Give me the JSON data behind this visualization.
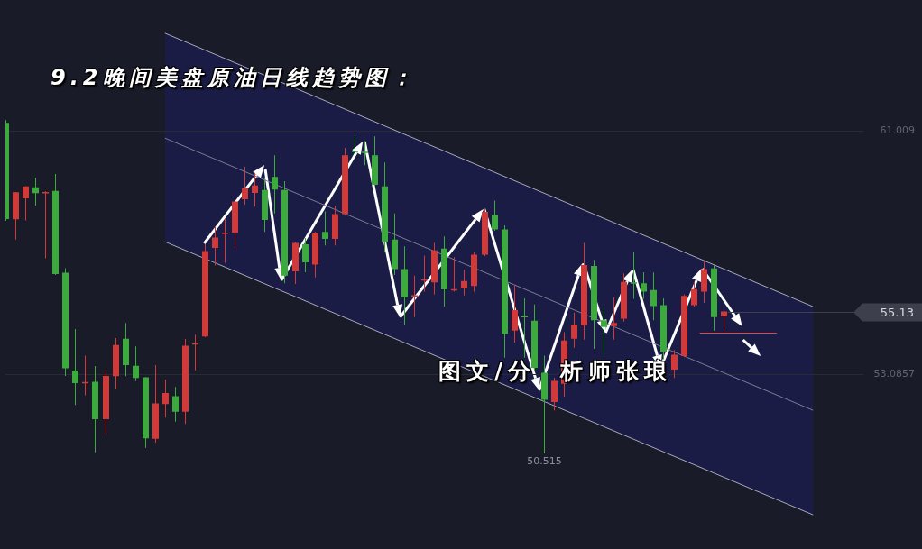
{
  "chart_data": {
    "type": "candlestick",
    "title": "9.2晚间美盘原油日线趋势图：",
    "categories": [
      null,
      null,
      null,
      null,
      null,
      null,
      null,
      null,
      null,
      null,
      null,
      null,
      null,
      null,
      null,
      null,
      null,
      null,
      null,
      null,
      null,
      null,
      null,
      null,
      null,
      null,
      null,
      null,
      null,
      null,
      null,
      null,
      null,
      null,
      null,
      null,
      null,
      null,
      null,
      null,
      null,
      null,
      null,
      null,
      null,
      null,
      null,
      null,
      null,
      null,
      null,
      null,
      null,
      null,
      null,
      null,
      null,
      null,
      null,
      null,
      null,
      null,
      null,
      null,
      null,
      null,
      null,
      null,
      null,
      null,
      null,
      null,
      null,
      null,
      null,
      null,
      null,
      null,
      null,
      null,
      null,
      null,
      null,
      null,
      null,
      null,
      null
    ],
    "ohlc": [
      [
        61.27,
        61.36,
        58.08,
        58.14
      ],
      [
        58.13,
        59.02,
        57.47,
        59.01
      ],
      [
        58.81,
        59.21,
        58.09,
        59.2
      ],
      [
        59.17,
        59.48,
        58.58,
        58.98
      ],
      [
        59.0,
        59.04,
        56.86,
        59.02
      ],
      [
        59.05,
        59.6,
        56.32,
        56.35
      ],
      [
        56.39,
        56.54,
        53.04,
        53.29
      ],
      [
        53.21,
        54.56,
        52.09,
        52.8
      ],
      [
        52.81,
        53.7,
        52.41,
        52.84
      ],
      [
        52.85,
        53.36,
        50.55,
        51.63
      ],
      [
        51.63,
        53.24,
        51.14,
        53.04
      ],
      [
        53.03,
        54.27,
        52.6,
        54.04
      ],
      [
        54.25,
        54.76,
        53.03,
        53.39
      ],
      [
        53.37,
        54.0,
        52.87,
        52.97
      ],
      [
        52.99,
        53.0,
        50.7,
        51.01
      ],
      [
        50.99,
        53.39,
        50.87,
        52.14
      ],
      [
        52.12,
        52.92,
        51.68,
        52.48
      ],
      [
        52.38,
        52.68,
        51.55,
        51.87
      ],
      [
        51.87,
        54.24,
        51.48,
        54.02
      ],
      [
        54.08,
        54.38,
        53.22,
        54.1
      ],
      [
        54.32,
        57.32,
        54.3,
        57.1
      ],
      [
        57.2,
        57.88,
        56.63,
        57.54
      ],
      [
        57.68,
        58.17,
        56.71,
        57.7
      ],
      [
        57.69,
        58.76,
        57.2,
        58.71
      ],
      [
        58.78,
        59.84,
        58.61,
        59.15
      ],
      [
        58.99,
        59.64,
        58.55,
        59.23
      ],
      [
        59.08,
        59.46,
        57.72,
        58.11
      ],
      [
        59.51,
        60.21,
        58.32,
        59.1
      ],
      [
        59.08,
        59.37,
        56.05,
        56.3
      ],
      [
        56.44,
        57.39,
        56.03,
        57.36
      ],
      [
        57.32,
        57.52,
        56.41,
        56.73
      ],
      [
        56.66,
        57.72,
        56.24,
        57.69
      ],
      [
        57.72,
        58.39,
        57.28,
        57.49
      ],
      [
        57.49,
        58.57,
        57.28,
        58.3
      ],
      [
        58.3,
        60.45,
        58.28,
        60.21
      ],
      [
        60.36,
        60.86,
        60.3,
        60.34
      ],
      [
        60.33,
        60.67,
        59.89,
        60.31
      ],
      [
        60.21,
        60.83,
        59.23,
        59.25
      ],
      [
        59.2,
        59.98,
        57.05,
        57.39
      ],
      [
        57.47,
        58.32,
        56.32,
        56.51
      ],
      [
        56.51,
        57.25,
        54.71,
        55.59
      ],
      [
        55.64,
        56.3,
        54.95,
        55.66
      ],
      [
        56.16,
        56.95,
        55.78,
        56.18
      ],
      [
        56.08,
        57.37,
        55.68,
        57.12
      ],
      [
        57.18,
        57.57,
        55.29,
        55.85
      ],
      [
        55.84,
        56.9,
        55.78,
        55.86
      ],
      [
        55.88,
        56.49,
        55.65,
        56.12
      ],
      [
        55.96,
        57.05,
        55.78,
        56.98
      ],
      [
        56.98,
        58.47,
        56.93,
        58.37
      ],
      [
        58.27,
        58.74,
        57.76,
        57.8
      ],
      [
        57.8,
        57.93,
        53.63,
        54.41
      ],
      [
        54.51,
        55.98,
        54.12,
        55.18
      ],
      [
        54.99,
        55.56,
        53.63,
        54.97
      ],
      [
        54.83,
        55.36,
        53.18,
        53.3
      ],
      [
        53.14,
        53.7,
        50.515,
        52.26
      ],
      [
        52.19,
        52.98,
        51.92,
        52.88
      ],
      [
        52.78,
        54.46,
        52.36,
        54.19
      ],
      [
        54.25,
        55.1,
        53.95,
        54.71
      ],
      [
        54.68,
        57.36,
        54.22,
        56.64
      ],
      [
        56.61,
        56.81,
        53.92,
        54.85
      ],
      [
        54.85,
        55.27,
        53.73,
        54.63
      ],
      [
        54.66,
        55.59,
        54.22,
        54.76
      ],
      [
        54.9,
        56.37,
        54.8,
        56.09
      ],
      [
        56.08,
        57.05,
        55.54,
        56.06
      ],
      [
        56.05,
        56.41,
        55.54,
        55.78
      ],
      [
        55.83,
        56.4,
        54.85,
        55.31
      ],
      [
        55.34,
        55.56,
        53.58,
        53.83
      ],
      [
        53.24,
        53.88,
        52.97,
        53.73
      ],
      [
        53.68,
        55.68,
        53.66,
        55.64
      ],
      [
        55.34,
        56.08,
        55.29,
        55.86
      ],
      [
        55.78,
        56.79,
        55.41,
        56.51
      ],
      [
        56.53,
        56.66,
        54.51,
        54.95
      ],
      [
        54.97,
        55.13,
        54.51,
        55.13
      ],
      null,
      null,
      null,
      null,
      null,
      null,
      null,
      null,
      null,
      null,
      null,
      null,
      null,
      null
    ],
    "colors": [
      "#3caa3c",
      "#d23a3a",
      "#d23a3a",
      "#3caa3c",
      "#d23a3a",
      "#3caa3c",
      "#3caa3c",
      "#3caa3c",
      "#d23a3a",
      "#3caa3c",
      "#d23a3a",
      "#d23a3a",
      "#3caa3c",
      "#3caa3c",
      "#3caa3c",
      "#d23a3a",
      "#d23a3a",
      "#3caa3c",
      "#d23a3a",
      "#d23a3a",
      "#d23a3a",
      "#d23a3a",
      "#d23a3a",
      "#d23a3a",
      "#d23a3a",
      "#d23a3a",
      "#3caa3c",
      "#3caa3c",
      "#3caa3c",
      "#d23a3a",
      "#3caa3c",
      "#d23a3a",
      "#3caa3c",
      "#d23a3a",
      "#d23a3a",
      "#3caa3c",
      "#3caa3c",
      "#3caa3c",
      "#3caa3c",
      "#3caa3c",
      "#3caa3c",
      "#d23a3a",
      "#d23a3a",
      "#d23a3a",
      "#3caa3c",
      "#d23a3a",
      "#d23a3a",
      "#d23a3a",
      "#d23a3a",
      "#3caa3c",
      "#3caa3c",
      "#d23a3a",
      "#3caa3c",
      "#3caa3c",
      "#3caa3c",
      "#d23a3a",
      "#d23a3a",
      "#d23a3a",
      "#d23a3a",
      "#3caa3c",
      "#3caa3c",
      "#d23a3a",
      "#d23a3a",
      "#3caa3c",
      "#3caa3c",
      "#3caa3c",
      "#3caa3c",
      "#d23a3a",
      "#d23a3a",
      "#d23a3a",
      "#d23a3a",
      "#3caa3c",
      "#d23a3a",
      null,
      null,
      null,
      null,
      null,
      null,
      null,
      null,
      null,
      null,
      null,
      null,
      null,
      null
    ],
    "series": [
      {
        "type": "line",
        "color": "#a9a9bb",
        "values": [
          null,
          null,
          null,
          null,
          null,
          null,
          null,
          null,
          null,
          null,
          null,
          null,
          null,
          null,
          null,
          null,
          64.18,
          null,
          null,
          null,
          null,
          null,
          null,
          null,
          null,
          null,
          null,
          null,
          null,
          null,
          null,
          null,
          null,
          null,
          null,
          null,
          null,
          null,
          null,
          null,
          null,
          null,
          null,
          null,
          null,
          null,
          null,
          null,
          null,
          null,
          null,
          null,
          null,
          null,
          null,
          null,
          null,
          null,
          null,
          null,
          null,
          null,
          null,
          null,
          null,
          null,
          null,
          null,
          null,
          null,
          null,
          null,
          null,
          null,
          null,
          null,
          null,
          null,
          null,
          null,
          null,
          55.29,
          null,
          null,
          null,
          null,
          null
        ]
      },
      {
        "type": "line",
        "color": "#7c7c94",
        "values": [
          null,
          null,
          null,
          null,
          null,
          null,
          null,
          null,
          null,
          null,
          null,
          null,
          null,
          null,
          null,
          null,
          60.77,
          null,
          null,
          null,
          null,
          null,
          null,
          null,
          null,
          null,
          null,
          null,
          null,
          null,
          null,
          null,
          null,
          null,
          null,
          null,
          null,
          null,
          null,
          null,
          null,
          null,
          null,
          null,
          null,
          null,
          null,
          null,
          null,
          null,
          null,
          null,
          null,
          null,
          null,
          null,
          null,
          null,
          null,
          null,
          null,
          null,
          null,
          null,
          null,
          null,
          null,
          null,
          null,
          null,
          null,
          null,
          null,
          null,
          null,
          null,
          null,
          null,
          null,
          null,
          null,
          51.92,
          null,
          null,
          null,
          null,
          null
        ],
        "upper": [
          null,
          null,
          null,
          null,
          null,
          null,
          null,
          null,
          null,
          null,
          null,
          null,
          null,
          null,
          null,
          null,
          64.18,
          null,
          null,
          null,
          null,
          null,
          null,
          null,
          null,
          null,
          null,
          null,
          null,
          null,
          null,
          null,
          null,
          null,
          null,
          null,
          null,
          null,
          null,
          null,
          null,
          null,
          null,
          null,
          null,
          null,
          null,
          null,
          null,
          null,
          null,
          null,
          null,
          null,
          null,
          null,
          null,
          null,
          null,
          null,
          null,
          null,
          null,
          null,
          null,
          null,
          null,
          null,
          null,
          null,
          null,
          null,
          null,
          null,
          null,
          null,
          null,
          null,
          null,
          null,
          null,
          55.29,
          null,
          null,
          null,
          null,
          null
        ],
        "lower": [
          null,
          null,
          null,
          null,
          null,
          null,
          null,
          null,
          null,
          null,
          null,
          null,
          null,
          null,
          null,
          null,
          57.4,
          null,
          null,
          null,
          null,
          null,
          null,
          null,
          null,
          null,
          null,
          null,
          null,
          null,
          null,
          null,
          null,
          null,
          null,
          null,
          null,
          null,
          null,
          null,
          null,
          null,
          null,
          null,
          null,
          null,
          null,
          null,
          null,
          null,
          null,
          null,
          null,
          null,
          null,
          null,
          null,
          null,
          null,
          null,
          null,
          null,
          null,
          null,
          null,
          null,
          null,
          null,
          null,
          null,
          null,
          null,
          null,
          null,
          null,
          null,
          null,
          null,
          null,
          null,
          null,
          48.52,
          null,
          null,
          null,
          null,
          null
        ]
      },
      {
        "type": "line",
        "color": "#a9a9bb",
        "values": [
          null,
          null,
          null,
          null,
          null,
          null,
          null,
          null,
          null,
          null,
          null,
          null,
          null,
          null,
          null,
          null,
          57.4,
          null,
          null,
          null,
          null,
          null,
          null,
          null,
          null,
          null,
          null,
          null,
          null,
          null,
          null,
          null,
          null,
          null,
          null,
          null,
          null,
          null,
          null,
          null,
          null,
          null,
          null,
          null,
          null,
          null,
          null,
          null,
          null,
          null,
          null,
          null,
          null,
          null,
          null,
          null,
          null,
          null,
          null,
          null,
          null,
          null,
          null,
          null,
          null,
          null,
          null,
          null,
          null,
          null,
          null,
          null,
          null,
          null,
          null,
          null,
          null,
          null,
          null,
          null,
          null,
          48.52,
          null,
          null,
          null,
          null,
          null
        ]
      }
    ],
    "ylim": [
      47.41,
      65.26
    ],
    "yticks": [
      61.009,
      53.0857
    ],
    "grid": "y",
    "tick_labels": "y",
    "ref_lines": [
      {
        "axis": "y",
        "value": 55.13,
        "label": "55.13",
        "color": "#3d404c"
      }
    ],
    "annotations": [
      "图文/分析师张琅",
      {
        "text": "50.515",
        "y": 50.515
      }
    ]
  }
}
